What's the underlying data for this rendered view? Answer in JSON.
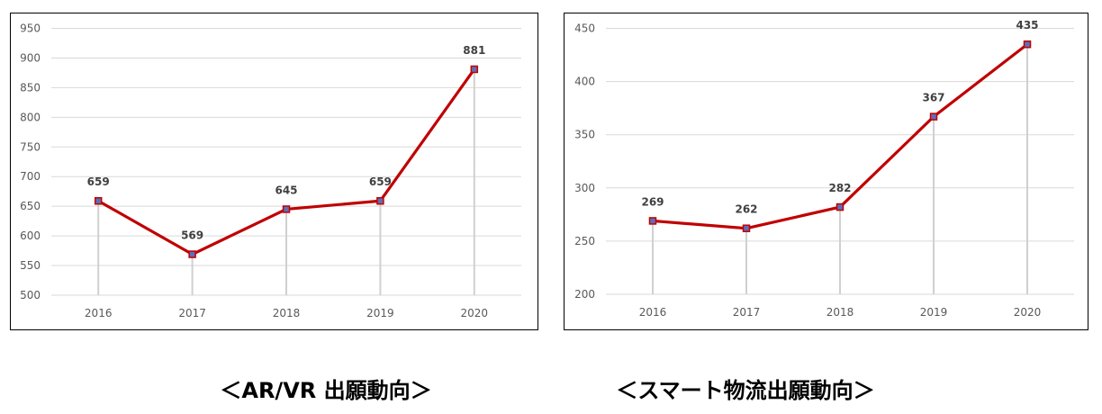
{
  "chart_data": [
    {
      "type": "line",
      "categories": [
        "2016",
        "2017",
        "2018",
        "2019",
        "2020"
      ],
      "values": [
        659,
        569,
        645,
        659,
        881
      ],
      "ylim": [
        500,
        950
      ],
      "yticks": [
        "500",
        "550",
        "600",
        "650",
        "700",
        "750",
        "800",
        "850",
        "900",
        "950"
      ],
      "caption": "＜AR/VR 出願動向＞",
      "grid": true,
      "line_color": "#c00000",
      "marker_color": "#5b6fb8"
    },
    {
      "type": "line",
      "categories": [
        "2016",
        "2017",
        "2018",
        "2019",
        "2020"
      ],
      "values": [
        269,
        262,
        282,
        367,
        435
      ],
      "ylim": [
        200,
        450
      ],
      "yticks": [
        "200",
        "250",
        "300",
        "350",
        "400",
        "450"
      ],
      "caption": "＜スマート物流出願動向＞",
      "grid": true,
      "line_color": "#c00000",
      "marker_color": "#5b6fb8"
    }
  ]
}
